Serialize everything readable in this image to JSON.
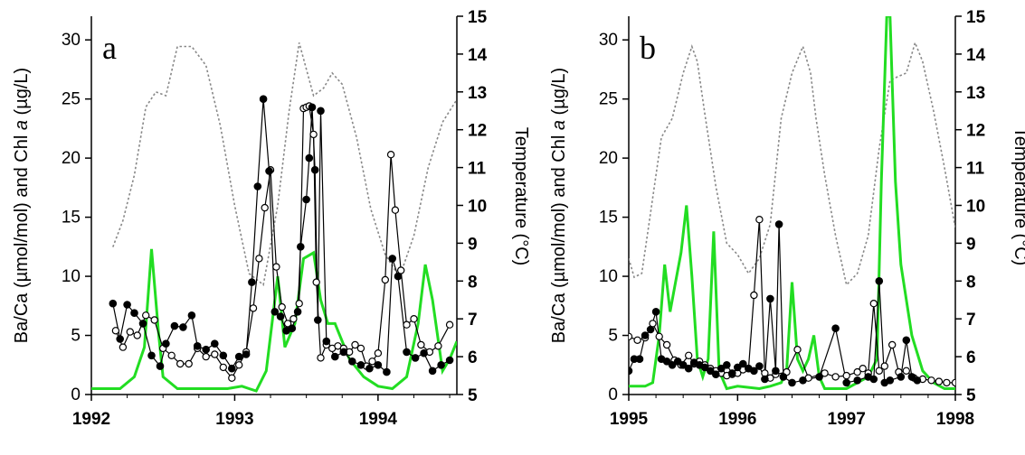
{
  "chart_data": [
    {
      "type": "line",
      "panel_label": "a",
      "xlim": [
        1992,
        1994.55
      ],
      "x_ticks": [
        "1992",
        "1993",
        "1994"
      ],
      "ylabel_parts": [
        "Ba/Ca (µmol/mol) and Chl ",
        "a",
        " (µg/L)"
      ],
      "ylim": [
        0,
        32
      ],
      "y_ticks": [
        "0",
        "5",
        "10",
        "15",
        "20",
        "25",
        "30"
      ],
      "y2label": "Temperature (°C)",
      "y2lim": [
        5,
        15
      ],
      "y2_ticks": [
        "5",
        "6",
        "7",
        "8",
        "9",
        "10",
        "11",
        "12",
        "13",
        "14",
        "15"
      ],
      "colors": {
        "chl": "#22dd22",
        "temp": "#888888",
        "filled": "#000000",
        "open": "#ffffff"
      },
      "series": [
        {
          "id": "chl",
          "style": "green-line",
          "x": [
            1992,
            1992.2,
            1992.3,
            1992.37,
            1992.42,
            1992.47,
            1992.5,
            1992.6,
            1992.75,
            1992.95,
            1993.05,
            1993.1,
            1993.15,
            1993.22,
            1993.3,
            1993.35,
            1993.42,
            1993.48,
            1993.55,
            1993.6,
            1993.65,
            1993.7,
            1993.8,
            1993.9,
            1994.0,
            1994.1,
            1994.2,
            1994.28,
            1994.33,
            1994.38,
            1994.45,
            1994.5,
            1994.55
          ],
          "y": [
            0.5,
            0.5,
            1.5,
            4,
            12.3,
            5,
            1.5,
            0.5,
            0.5,
            0.5,
            0.7,
            0.5,
            0.3,
            2,
            10,
            4,
            6,
            11.5,
            12,
            8,
            6,
            6,
            3,
            1.5,
            0.7,
            0.5,
            1.5,
            6,
            11,
            8,
            2,
            3,
            4.5
          ]
        },
        {
          "id": "temp",
          "axis": "right",
          "style": "gray-dotted",
          "x": [
            1992.15,
            1992.22,
            1992.3,
            1992.38,
            1992.45,
            1992.52,
            1992.6,
            1992.7,
            1992.8,
            1992.9,
            1993.0,
            1993.1,
            1993.2,
            1993.3,
            1993.38,
            1993.45,
            1993.55,
            1993.62,
            1993.68,
            1993.75,
            1993.85,
            1993.95,
            1994.05,
            1994.15,
            1994.25,
            1994.35,
            1994.45,
            1994.55
          ],
          "y": [
            8.9,
            9.6,
            10.8,
            12.6,
            13,
            12.9,
            14.2,
            14.2,
            13.7,
            12.1,
            10,
            8.2,
            7.9,
            10,
            12.5,
            14.3,
            12.9,
            13.1,
            13.5,
            13.2,
            11.8,
            9.9,
            8.7,
            8.1,
            9.2,
            11,
            12.2,
            12.8
          ]
        },
        {
          "id": "filled",
          "style": "black-filled-markers",
          "x": [
            1992.15,
            1992.2,
            1992.25,
            1992.3,
            1992.36,
            1992.42,
            1992.48,
            1992.52,
            1992.58,
            1992.64,
            1992.7,
            1992.74,
            1992.8,
            1992.86,
            1992.92,
            1992.98,
            1993.03,
            1993.08,
            1993.12,
            1993.16,
            1993.2,
            1993.24,
            1993.28,
            1993.32,
            1993.36,
            1993.4,
            1993.44,
            1993.46,
            1993.5,
            1993.52,
            1993.54,
            1993.56,
            1993.58,
            1993.6,
            1993.64,
            1993.7,
            1993.76,
            1993.82,
            1993.88,
            1993.94,
            1994.0,
            1994.06,
            1994.1,
            1994.14,
            1994.2,
            1994.26,
            1994.32,
            1994.38,
            1994.44,
            1994.5
          ],
          "y": [
            7.7,
            4.7,
            7.6,
            6.9,
            6,
            3.3,
            2.4,
            4.3,
            5.8,
            5.7,
            6.7,
            4.1,
            3.8,
            4.3,
            3.3,
            2.2,
            3.2,
            3.4,
            9.5,
            17.6,
            25,
            18.9,
            7,
            6.6,
            5.4,
            5.6,
            7,
            12.5,
            16.5,
            20,
            24.3,
            19,
            6.3,
            24,
            4.5,
            3.2,
            3.6,
            2.8,
            2.5,
            2.2,
            2.5,
            1.9,
            11.5,
            10,
            3.6,
            3.1,
            3.5,
            2,
            2.5,
            2.9
          ]
        },
        {
          "id": "open",
          "style": "black-open-markers",
          "x": [
            1992.17,
            1992.22,
            1992.27,
            1992.32,
            1992.38,
            1992.44,
            1992.5,
            1992.56,
            1992.62,
            1992.68,
            1992.74,
            1992.8,
            1992.86,
            1992.92,
            1992.98,
            1993.03,
            1993.08,
            1993.13,
            1993.17,
            1993.21,
            1993.25,
            1993.29,
            1993.33,
            1993.37,
            1993.41,
            1993.45,
            1993.48,
            1993.5,
            1993.52,
            1993.55,
            1993.57,
            1993.6,
            1993.64,
            1993.68,
            1993.72,
            1993.76,
            1993.8,
            1993.84,
            1993.88,
            1993.92,
            1993.96,
            1994.0,
            1994.05,
            1994.09,
            1994.12,
            1994.16,
            1994.2,
            1994.25,
            1994.3,
            1994.36,
            1994.42,
            1994.5
          ],
          "y": [
            5.4,
            4,
            5.3,
            5,
            6.7,
            6.3,
            3.9,
            3.3,
            2.6,
            2.6,
            3.9,
            3.2,
            3.4,
            2.3,
            1.4,
            2.5,
            3.6,
            7.3,
            11.5,
            15.8,
            19,
            10.8,
            7.4,
            6,
            6.4,
            7.7,
            24.2,
            24.3,
            24.4,
            22,
            9.5,
            3.1,
            4.2,
            3.9,
            4.1,
            3.9,
            3.6,
            4.2,
            3.9,
            2.4,
            2.8,
            3.5,
            9.7,
            20.3,
            15.6,
            10.5,
            5.9,
            6.4,
            4.2,
            3.6,
            4.1,
            5.9
          ]
        }
      ]
    },
    {
      "type": "line",
      "panel_label": "b",
      "xlim": [
        1995,
        1998
      ],
      "x_ticks": [
        "1995",
        "1996",
        "1997",
        "1998"
      ],
      "ylabel_parts": [
        "Ba/Ca (µmol/mol) and Chl ",
        "a",
        " (µg/L)"
      ],
      "ylim": [
        0,
        32
      ],
      "y_ticks": [
        "0",
        "5",
        "10",
        "15",
        "20",
        "25",
        "30"
      ],
      "y2label": "Temperature (°C)",
      "y2lim": [
        5,
        15
      ],
      "y2_ticks": [
        "5",
        "6",
        "7",
        "8",
        "9",
        "10",
        "11",
        "12",
        "13",
        "14",
        "15"
      ],
      "colors": {
        "chl": "#22dd22",
        "temp": "#888888",
        "filled": "#000000",
        "open": "#ffffff"
      },
      "series": [
        {
          "id": "chl",
          "style": "green-line",
          "x": [
            1995,
            1995.15,
            1995.22,
            1995.28,
            1995.33,
            1995.38,
            1995.43,
            1995.48,
            1995.53,
            1995.58,
            1995.63,
            1995.68,
            1995.73,
            1995.78,
            1995.83,
            1995.9,
            1996.0,
            1996.1,
            1996.2,
            1996.3,
            1996.4,
            1996.45,
            1996.5,
            1996.55,
            1996.6,
            1996.65,
            1996.7,
            1996.75,
            1996.8,
            1996.9,
            1997.0,
            1997.1,
            1997.2,
            1997.28,
            1997.32,
            1997.37,
            1997.4,
            1997.45,
            1997.5,
            1997.6,
            1997.7,
            1997.8,
            1997.9,
            1998.0
          ],
          "y": [
            0.7,
            0.7,
            1,
            5,
            11,
            7,
            9.5,
            12,
            16,
            10,
            3,
            1.5,
            3,
            13.8,
            2,
            0.5,
            0.7,
            0.6,
            0.5,
            0.7,
            1,
            2,
            9.5,
            3,
            2,
            3,
            5,
            1.5,
            0.5,
            0.5,
            0.5,
            1,
            1.5,
            3,
            18,
            32,
            32,
            18,
            11,
            5,
            2,
            1,
            0.5,
            0.5
          ]
        },
        {
          "id": "temp",
          "axis": "right",
          "style": "gray-dotted",
          "x": [
            1995,
            1995.05,
            1995.12,
            1995.2,
            1995.3,
            1995.4,
            1995.5,
            1995.58,
            1995.63,
            1995.7,
            1995.8,
            1995.9,
            1996.0,
            1996.1,
            1996.2,
            1996.3,
            1996.4,
            1996.5,
            1996.6,
            1996.67,
            1996.72,
            1996.8,
            1996.9,
            1997.0,
            1997.1,
            1997.2,
            1997.3,
            1997.4,
            1997.47,
            1997.55,
            1997.63,
            1997.7,
            1997.8,
            1997.9,
            1998.0
          ],
          "y": [
            8.6,
            8.1,
            8.2,
            9.8,
            11.8,
            12.3,
            13.5,
            14.2,
            13.8,
            12.4,
            10.5,
            9,
            8.7,
            8.2,
            8.6,
            9.5,
            12.3,
            13.5,
            14.2,
            13.5,
            12.3,
            10.8,
            9.2,
            7.9,
            8.2,
            9.2,
            11.5,
            13.3,
            13.4,
            13.5,
            14.3,
            13.8,
            12.5,
            11,
            9.4
          ]
        },
        {
          "id": "filled",
          "style": "black-filled-markers",
          "x": [
            1995,
            1995.05,
            1995.1,
            1995.15,
            1995.2,
            1995.25,
            1995.3,
            1995.35,
            1995.4,
            1995.45,
            1995.5,
            1995.55,
            1995.6,
            1995.65,
            1995.7,
            1995.75,
            1995.8,
            1995.85,
            1995.9,
            1995.95,
            1996.0,
            1996.05,
            1996.1,
            1996.15,
            1996.2,
            1996.25,
            1996.3,
            1996.35,
            1996.38,
            1996.42,
            1996.5,
            1996.6,
            1996.75,
            1996.9,
            1997.0,
            1997.1,
            1997.2,
            1997.25,
            1997.3,
            1997.35,
            1997.4,
            1997.5,
            1997.55,
            1997.6,
            1997.65
          ],
          "y": [
            2,
            3,
            3,
            5,
            5.5,
            7,
            3,
            2.8,
            2.5,
            2.8,
            2.5,
            2.2,
            2.7,
            2.5,
            2.3,
            2,
            1.7,
            2.2,
            2.5,
            1.8,
            2.3,
            2.6,
            2.2,
            2,
            2.4,
            1.3,
            8.1,
            2,
            14.4,
            1.5,
            1,
            1.2,
            1.5,
            5.6,
            1,
            1.2,
            1.5,
            1.3,
            9.6,
            1,
            1.2,
            1.5,
            4.6,
            1.5,
            1.2
          ]
        },
        {
          "id": "open",
          "style": "black-open-markers",
          "x": [
            1995,
            1995.08,
            1995.15,
            1995.22,
            1995.28,
            1995.35,
            1995.42,
            1995.48,
            1995.55,
            1995.6,
            1995.65,
            1995.7,
            1995.75,
            1995.8,
            1995.85,
            1995.9,
            1995.95,
            1996.0,
            1996.05,
            1996.1,
            1996.15,
            1996.2,
            1996.25,
            1996.3,
            1996.35,
            1996.45,
            1996.55,
            1996.65,
            1996.8,
            1996.9,
            1997.0,
            1997.1,
            1997.15,
            1997.2,
            1997.25,
            1997.3,
            1997.35,
            1997.42,
            1997.48,
            1997.55,
            1997.62,
            1997.7,
            1997.78,
            1997.85,
            1997.92,
            1998.0
          ],
          "y": [
            4.9,
            4.6,
            4.8,
            6,
            4.9,
            4.2,
            2.9,
            2.5,
            3.3,
            2.6,
            2.8,
            2.5,
            2.2,
            2,
            1.8,
            1.6,
            1.7,
            1.8,
            2.1,
            2.2,
            8.4,
            14.8,
            1.8,
            1.4,
            1.7,
            1.9,
            3.8,
            1.4,
            1.8,
            1.5,
            1.6,
            1.9,
            2.2,
            1.8,
            7.7,
            2,
            2.4,
            4.2,
            1.9,
            2,
            1.4,
            1.3,
            1.2,
            1.1,
            1,
            1
          ]
        }
      ]
    }
  ]
}
